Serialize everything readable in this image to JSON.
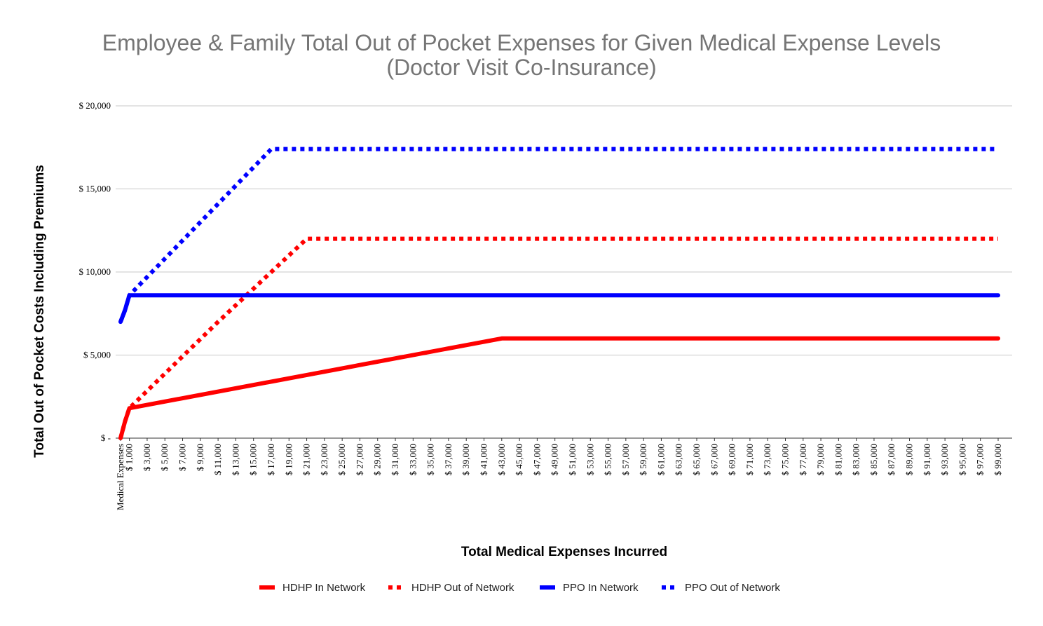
{
  "chart_data": {
    "type": "line",
    "title_line1": "Employee & Family Total Out of Pocket Expenses for Given Medical Expense Levels",
    "title_line2": "(Doctor Visit Co-Insurance)",
    "xlabel": "Total Medical Expenses Incurred",
    "ylabel": "Total Out of Pocket Costs Including Premiums",
    "xlim": [
      0,
      100000
    ],
    "ylim": [
      0,
      20000
    ],
    "y_ticks": [
      {
        "value": 0,
        "label": "$ -"
      },
      {
        "value": 5000,
        "label": "$ 5,000"
      },
      {
        "value": 10000,
        "label": "$ 10,000"
      },
      {
        "value": 15000,
        "label": "$ 15,000"
      },
      {
        "value": 20000,
        "label": "$ 20,000"
      }
    ],
    "x_ticks": [
      {
        "value": 0,
        "label": "Medical Expenses"
      },
      {
        "value": 1000,
        "label": "$ 1,000"
      },
      {
        "value": 3000,
        "label": "$ 3,000"
      },
      {
        "value": 5000,
        "label": "$ 5,000"
      },
      {
        "value": 7000,
        "label": "$ 7,000"
      },
      {
        "value": 9000,
        "label": "$ 9,000"
      },
      {
        "value": 11000,
        "label": "$ 11,000"
      },
      {
        "value": 13000,
        "label": "$ 13,000"
      },
      {
        "value": 15000,
        "label": "$ 15,000"
      },
      {
        "value": 17000,
        "label": "$ 17,000"
      },
      {
        "value": 19000,
        "label": "$ 19,000"
      },
      {
        "value": 21000,
        "label": "$ 21,000"
      },
      {
        "value": 23000,
        "label": "$ 23,000"
      },
      {
        "value": 25000,
        "label": "$ 25,000"
      },
      {
        "value": 27000,
        "label": "$ 27,000"
      },
      {
        "value": 29000,
        "label": "$ 29,000"
      },
      {
        "value": 31000,
        "label": "$ 31,000"
      },
      {
        "value": 33000,
        "label": "$ 33,000"
      },
      {
        "value": 35000,
        "label": "$ 35,000"
      },
      {
        "value": 37000,
        "label": "$ 37,000"
      },
      {
        "value": 39000,
        "label": "$ 39,000"
      },
      {
        "value": 41000,
        "label": "$ 41,000"
      },
      {
        "value": 43000,
        "label": "$ 43,000"
      },
      {
        "value": 45000,
        "label": "$ 45,000"
      },
      {
        "value": 47000,
        "label": "$ 47,000"
      },
      {
        "value": 49000,
        "label": "$ 49,000"
      },
      {
        "value": 51000,
        "label": "$ 51,000"
      },
      {
        "value": 53000,
        "label": "$ 53,000"
      },
      {
        "value": 55000,
        "label": "$ 55,000"
      },
      {
        "value": 57000,
        "label": "$ 57,000"
      },
      {
        "value": 59000,
        "label": "$ 59,000"
      },
      {
        "value": 61000,
        "label": "$ 61,000"
      },
      {
        "value": 63000,
        "label": "$ 63,000"
      },
      {
        "value": 65000,
        "label": "$ 65,000"
      },
      {
        "value": 67000,
        "label": "$ 67,000"
      },
      {
        "value": 69000,
        "label": "$ 69,000"
      },
      {
        "value": 71000,
        "label": "$ 71,000"
      },
      {
        "value": 73000,
        "label": "$ 73,000"
      },
      {
        "value": 75000,
        "label": "$ 75,000"
      },
      {
        "value": 77000,
        "label": "$ 77,000"
      },
      {
        "value": 79000,
        "label": "$ 79,000"
      },
      {
        "value": 81000,
        "label": "$ 81,000"
      },
      {
        "value": 83000,
        "label": "$ 83,000"
      },
      {
        "value": 85000,
        "label": "$ 85,000"
      },
      {
        "value": 87000,
        "label": "$ 87,000"
      },
      {
        "value": 89000,
        "label": "$ 89,000"
      },
      {
        "value": 91000,
        "label": "$ 91,000"
      },
      {
        "value": 93000,
        "label": "$ 93,000"
      },
      {
        "value": 95000,
        "label": "$ 95,000"
      },
      {
        "value": 97000,
        "label": "$ 97,000"
      },
      {
        "value": 99000,
        "label": "$ 99,000"
      }
    ],
    "series": [
      {
        "name": "HDHP In Network",
        "color": "#ff0000",
        "style": "solid",
        "points": [
          [
            0,
            0
          ],
          [
            500,
            1000
          ],
          [
            1000,
            1800
          ],
          [
            43000,
            6000
          ],
          [
            99000,
            6000
          ]
        ]
      },
      {
        "name": "HDHP Out of Network",
        "color": "#ff0000",
        "style": "dotted",
        "points": [
          [
            0,
            0
          ],
          [
            500,
            1000
          ],
          [
            1000,
            1800
          ],
          [
            11000,
            7000
          ],
          [
            21000,
            12000
          ],
          [
            99000,
            12000
          ]
        ]
      },
      {
        "name": "PPO In Network",
        "color": "#0000ff",
        "style": "solid",
        "points": [
          [
            0,
            7000
          ],
          [
            500,
            7700
          ],
          [
            1000,
            8600
          ],
          [
            99000,
            8600
          ]
        ]
      },
      {
        "name": "PPO Out of Network",
        "color": "#0000ff",
        "style": "dotted",
        "points": [
          [
            0,
            7000
          ],
          [
            500,
            7700
          ],
          [
            1000,
            8600
          ],
          [
            17000,
            17400
          ],
          [
            99000,
            17400
          ]
        ]
      }
    ]
  }
}
